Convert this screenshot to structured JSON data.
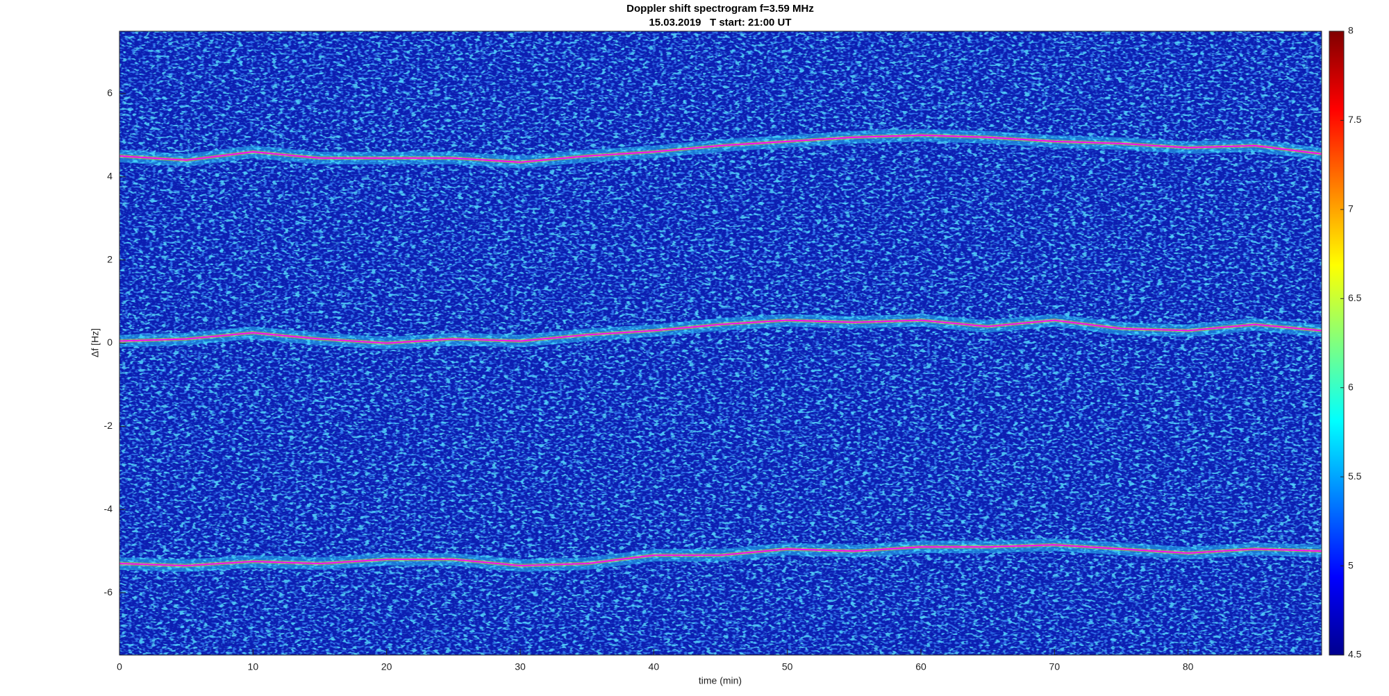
{
  "chart_data": {
    "type": "spectrogram",
    "title": "Doppler shift spectrogram f=3.59 MHz",
    "subtitle": "15.03.2019   T start: 21:00 UT",
    "x_label": "time (min)",
    "y_label": "Δf [Hz]",
    "xlim": [
      0,
      90
    ],
    "xticks": [
      0,
      10,
      20,
      30,
      40,
      50,
      60,
      70,
      80
    ],
    "ylim": [
      -7.5,
      7.5
    ],
    "yticks": [
      -6,
      -4,
      -2,
      0,
      2,
      4,
      6
    ],
    "colormap": "jet",
    "clim": [
      4.5,
      8
    ],
    "cticks": [
      4.5,
      5,
      5.5,
      6,
      6.5,
      7,
      7.5,
      8
    ],
    "x": [
      0,
      5,
      10,
      15,
      20,
      25,
      30,
      35,
      40,
      45,
      50,
      55,
      60,
      65,
      70,
      75,
      80,
      85,
      90
    ],
    "series": [
      {
        "color": "#ff00ff",
        "values": [
          4.5,
          4.4,
          4.6,
          4.45,
          4.45,
          4.45,
          4.35,
          4.5,
          4.6,
          4.75,
          4.85,
          4.95,
          5.0,
          4.95,
          4.85,
          4.8,
          4.7,
          4.75,
          4.55
        ]
      },
      {
        "color": "#ff00ff",
        "values": [
          0.05,
          0.1,
          0.25,
          0.1,
          0.0,
          0.1,
          0.05,
          0.2,
          0.3,
          0.45,
          0.55,
          0.5,
          0.55,
          0.4,
          0.55,
          0.35,
          0.3,
          0.45,
          0.3
        ]
      },
      {
        "color": "#ff00ff",
        "values": [
          -5.3,
          -5.35,
          -5.25,
          -5.3,
          -5.2,
          -5.2,
          -5.35,
          -5.3,
          -5.1,
          -5.1,
          -4.95,
          -5.0,
          -4.9,
          -4.9,
          -4.85,
          -4.95,
          -5.05,
          -4.95,
          -5.0
        ]
      }
    ]
  }
}
